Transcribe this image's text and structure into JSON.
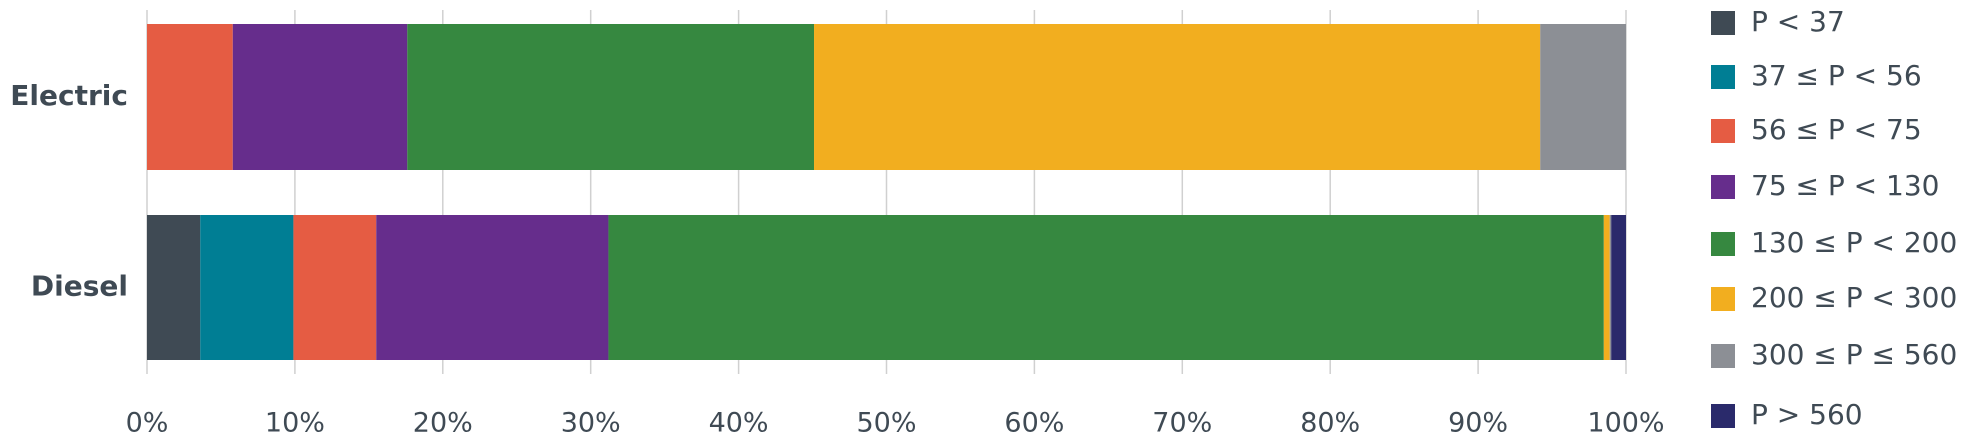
{
  "chart_data": {
    "type": "stacked-horizontal-bar",
    "categories": [
      "Electric",
      "Diesel"
    ],
    "series": [
      {
        "name": "P < 37",
        "color": "#3f4a54",
        "values": [
          0,
          3.6
        ]
      },
      {
        "name": "37 ≤ P < 56",
        "color": "#007e94",
        "values": [
          0,
          6.3
        ]
      },
      {
        "name": "56 ≤ P < 75",
        "color": "#e55c43",
        "values": [
          5.8,
          5.6
        ]
      },
      {
        "name": "75 ≤ P < 130",
        "color": "#662d8c",
        "values": [
          11.8,
          15.7
        ]
      },
      {
        "name": "130 ≤ P < 200",
        "color": "#368840",
        "values": [
          27.5,
          67.3
        ]
      },
      {
        "name": "200 ≤ P < 300",
        "color": "#f2ae1f",
        "values": [
          49.1,
          0.4
        ]
      },
      {
        "name": "300 ≤ P ≤ 560",
        "color": "#8c8f95",
        "values": [
          5.8,
          0.1
        ]
      },
      {
        "name": "P > 560",
        "color": "#2a2a6b",
        "values": [
          0,
          1.0
        ]
      }
    ],
    "xlim": [
      0,
      100
    ],
    "xticks": [
      {
        "value": 0,
        "label": "0%"
      },
      {
        "value": 10,
        "label": "10%"
      },
      {
        "value": 20,
        "label": "20%"
      },
      {
        "value": 30,
        "label": "30%"
      },
      {
        "value": 40,
        "label": "40%"
      },
      {
        "value": 50,
        "label": "50%"
      },
      {
        "value": 60,
        "label": "60%"
      },
      {
        "value": 70,
        "label": "70%"
      },
      {
        "value": 80,
        "label": "80%"
      },
      {
        "value": 90,
        "label": "90%"
      },
      {
        "value": 100,
        "label": "100%"
      }
    ],
    "grid": true,
    "legend": "right"
  }
}
